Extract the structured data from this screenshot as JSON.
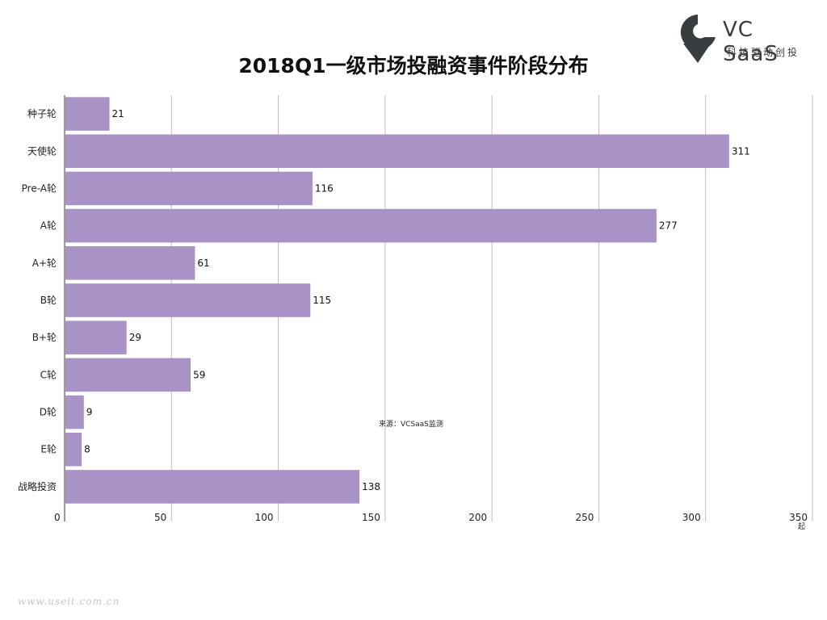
{
  "logo": {
    "name": "VC SaaS",
    "tagline": "科技驱动创投"
  },
  "footer": {
    "watermark": "www.useit.com.cn"
  },
  "chart_data": {
    "type": "bar",
    "orientation": "horizontal",
    "title": "2018Q1一级市场投融资事件阶段分布",
    "categories": [
      "种子轮",
      "天使轮",
      "Pre-A轮",
      "A轮",
      "A+轮",
      "B轮",
      "B+轮",
      "C轮",
      "D轮",
      "E轮",
      "战略投资"
    ],
    "values": [
      21,
      311,
      116,
      277,
      61,
      115,
      29,
      59,
      9,
      8,
      138
    ],
    "xlim": [
      0,
      350
    ],
    "xticks": [
      0,
      50,
      100,
      150,
      200,
      250,
      300,
      350
    ],
    "unit": "起",
    "annotation": "来源：VCSaaS监测",
    "grid": true,
    "bar_color": "#a993c6"
  }
}
